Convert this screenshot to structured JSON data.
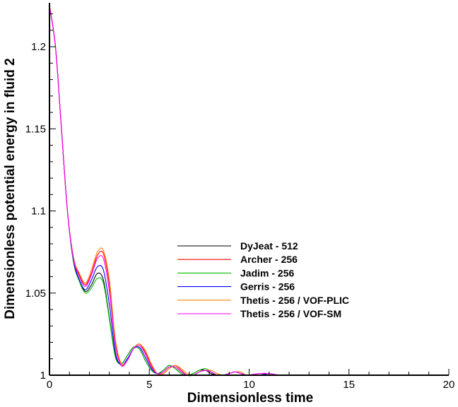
{
  "chart_data": {
    "type": "line",
    "xlabel": "Dimensionless time",
    "ylabel": "Dimensionless potential energy in fluid 2",
    "xlim": [
      0,
      20
    ],
    "ylim": [
      1.0,
      1.225
    ],
    "xticks": [
      0,
      5,
      10,
      15,
      20
    ],
    "xtick_labels": [
      "0",
      "5",
      "10",
      "15",
      "20"
    ],
    "yticks": [
      1.0,
      1.05,
      1.1,
      1.15,
      1.2
    ],
    "ytick_labels": [
      "1",
      "1.05",
      "1.1",
      "1.15",
      "1.2"
    ],
    "grid": false,
    "legend_position": "center-right",
    "series": [
      {
        "name": "DyJeat - 512",
        "color": "#000000",
        "x": [
          0,
          0.3,
          0.6,
          0.9,
          1.2,
          1.5,
          1.8,
          2.1,
          2.4,
          2.7,
          3.0,
          3.3,
          3.6,
          3.9,
          4.2,
          4.5,
          4.8,
          5.1,
          5.4,
          5.7,
          6.0,
          6.3,
          6.6,
          6.9,
          7.2,
          7.5,
          7.8,
          8.1,
          8.4,
          8.7,
          9.0,
          9.3,
          9.6,
          9.9,
          10.5,
          11,
          11.5,
          12,
          13,
          14,
          15,
          16,
          17,
          18,
          19,
          20
        ],
        "y": [
          1.225,
          1.2,
          1.15,
          1.1,
          1.07,
          1.058,
          1.051,
          1.055,
          1.062,
          1.058,
          1.035,
          1.012,
          1.007,
          1.012,
          1.017,
          1.016,
          1.009,
          1.003,
          1.001,
          1.003,
          1.006,
          1.004,
          1.001,
          1.0,
          1.001,
          1.003,
          1.003,
          1.001,
          1.0,
          1.0,
          1.001,
          1.002,
          1.001,
          1.0,
          1.0,
          1.001,
          1.0,
          1.0,
          1.0,
          1.0,
          1.0,
          1.0,
          1.0,
          1.0,
          1.0,
          1.0
        ]
      },
      {
        "name": "Archer - 256",
        "color": "#ff0000",
        "x": [
          0,
          0.3,
          0.6,
          0.9,
          1.2,
          1.5,
          1.8,
          2.1,
          2.4,
          2.7,
          3.0,
          3.3,
          3.6,
          3.9,
          4.2,
          4.5,
          4.8,
          5.1,
          5.4,
          5.7,
          6.0,
          6.3,
          6.6,
          6.9,
          7.2,
          7.5,
          7.8,
          8.1,
          8.4,
          8.7,
          9.0,
          9.3,
          9.6,
          9.9,
          10.5,
          11,
          11.5,
          12,
          13,
          14,
          15,
          16,
          17,
          18,
          19,
          20
        ],
        "y": [
          1.225,
          1.2,
          1.15,
          1.1,
          1.072,
          1.061,
          1.055,
          1.062,
          1.073,
          1.074,
          1.055,
          1.02,
          1.006,
          1.009,
          1.016,
          1.019,
          1.014,
          1.006,
          1.001,
          1.001,
          1.004,
          1.006,
          1.003,
          1.0,
          1.0,
          1.002,
          1.003,
          1.002,
          1.0,
          1.0,
          1.001,
          1.002,
          1.001,
          1.0,
          1.001,
          1.001,
          1.0,
          1.0,
          1.0,
          1.0,
          1.0,
          1.0,
          1.0,
          1.0,
          1.0,
          1.0
        ]
      },
      {
        "name": "Jadim - 256",
        "color": "#00c000",
        "x": [
          0,
          0.3,
          0.6,
          0.9,
          1.2,
          1.5,
          1.8,
          2.1,
          2.4,
          2.7,
          3.0,
          3.3,
          3.6,
          3.9,
          4.2,
          4.5,
          4.8,
          5.1,
          5.4,
          5.7,
          6.0,
          6.3,
          6.6,
          6.9,
          7.2,
          7.5,
          7.8,
          8.1,
          8.4,
          8.7,
          9.0,
          9.3,
          9.6,
          9.9,
          10.5,
          11,
          11.5,
          12,
          13,
          14,
          15,
          16,
          17,
          18,
          19,
          20
        ],
        "y": [
          1.225,
          1.2,
          1.15,
          1.1,
          1.069,
          1.057,
          1.05,
          1.053,
          1.059,
          1.056,
          1.034,
          1.011,
          1.007,
          1.012,
          1.017,
          1.016,
          1.009,
          1.003,
          1.001,
          1.003,
          1.006,
          1.004,
          1.001,
          1.0,
          1.001,
          1.003,
          1.004,
          1.002,
          1.0,
          1.0,
          1.001,
          1.002,
          1.001,
          1.0,
          1.0,
          1.001,
          1.0,
          1.0,
          1.0,
          1.0,
          1.0,
          1.0,
          1.0,
          1.0,
          1.0,
          1.0
        ]
      },
      {
        "name": "Gerris - 256",
        "color": "#0000ff",
        "x": [
          0,
          0.3,
          0.6,
          0.9,
          1.2,
          1.5,
          1.8,
          2.1,
          2.4,
          2.7,
          3.0,
          3.3,
          3.6,
          3.9,
          4.2,
          4.5,
          4.8,
          5.1,
          5.4,
          5.7,
          6.0,
          6.3,
          6.6,
          6.9,
          7.2,
          7.5,
          7.8,
          8.1,
          8.4,
          8.7,
          9.0,
          9.3,
          9.6,
          9.9,
          10.5,
          11,
          11.5,
          12,
          13,
          14,
          15,
          16,
          17,
          18,
          19,
          20
        ],
        "y": [
          1.225,
          1.2,
          1.15,
          1.1,
          1.07,
          1.058,
          1.052,
          1.058,
          1.066,
          1.064,
          1.043,
          1.014,
          1.006,
          1.01,
          1.016,
          1.017,
          1.011,
          1.004,
          1.001,
          1.002,
          1.005,
          1.005,
          1.002,
          1.0,
          1.0,
          1.002,
          1.003,
          1.002,
          1.0,
          1.0,
          1.001,
          1.002,
          1.001,
          1.0,
          1.0,
          1.001,
          1.0,
          1.0,
          1.0,
          1.0,
          1.0,
          1.0,
          1.0,
          1.0,
          1.0,
          1.0
        ]
      },
      {
        "name": "Thetis - 256 / VOF-PLIC",
        "color": "#ff8000",
        "x": [
          0,
          0.3,
          0.6,
          0.9,
          1.2,
          1.5,
          1.8,
          2.1,
          2.4,
          2.7,
          3.0,
          3.3,
          3.6,
          3.9,
          4.2,
          4.5,
          4.8,
          5.1,
          5.4,
          5.7,
          6.0,
          6.3,
          6.6,
          6.9,
          7.2,
          7.5,
          7.8,
          8.1,
          8.4,
          8.7,
          9.0,
          9.3,
          9.6,
          9.9,
          10.5,
          11,
          11.5,
          12,
          13,
          14,
          15,
          16,
          17,
          18,
          19,
          20
        ],
        "y": [
          1.225,
          1.2,
          1.15,
          1.1,
          1.072,
          1.062,
          1.056,
          1.064,
          1.075,
          1.076,
          1.058,
          1.022,
          1.007,
          1.009,
          1.016,
          1.019,
          1.015,
          1.007,
          1.001,
          1.001,
          1.004,
          1.006,
          1.004,
          1.001,
          1.0,
          1.002,
          1.003,
          1.003,
          1.001,
          1.0,
          1.001,
          1.002,
          1.002,
          1.0,
          1.001,
          1.001,
          1.0,
          1.0,
          1.0,
          1.0,
          1.0,
          1.0,
          1.0,
          1.0,
          1.0,
          1.0
        ]
      },
      {
        "name": "Thetis - 256 / VOF-SM",
        "color": "#ff00ff",
        "x": [
          0,
          0.3,
          0.6,
          0.9,
          1.2,
          1.5,
          1.8,
          2.1,
          2.4,
          2.7,
          3.0,
          3.3,
          3.6,
          3.9,
          4.2,
          4.5,
          4.8,
          5.1,
          5.4,
          5.7,
          6.0,
          6.3,
          6.6,
          6.9,
          7.2,
          7.5,
          7.8,
          8.1,
          8.4,
          8.7,
          9.0,
          9.3,
          9.6,
          9.9,
          10.5,
          11,
          11.5,
          12,
          13,
          14,
          15,
          16,
          17,
          18,
          19,
          20
        ],
        "y": [
          1.225,
          1.2,
          1.15,
          1.1,
          1.071,
          1.06,
          1.054,
          1.061,
          1.071,
          1.071,
          1.051,
          1.018,
          1.006,
          1.009,
          1.016,
          1.018,
          1.013,
          1.005,
          1.001,
          1.002,
          1.005,
          1.005,
          1.002,
          1.0,
          1.0,
          1.002,
          1.003,
          1.002,
          1.0,
          1.0,
          1.001,
          1.002,
          1.001,
          1.0,
          1.001,
          1.001,
          1.0,
          1.0,
          1.0,
          1.0,
          1.0,
          1.0,
          1.0,
          1.0,
          1.0,
          1.0
        ]
      }
    ]
  }
}
